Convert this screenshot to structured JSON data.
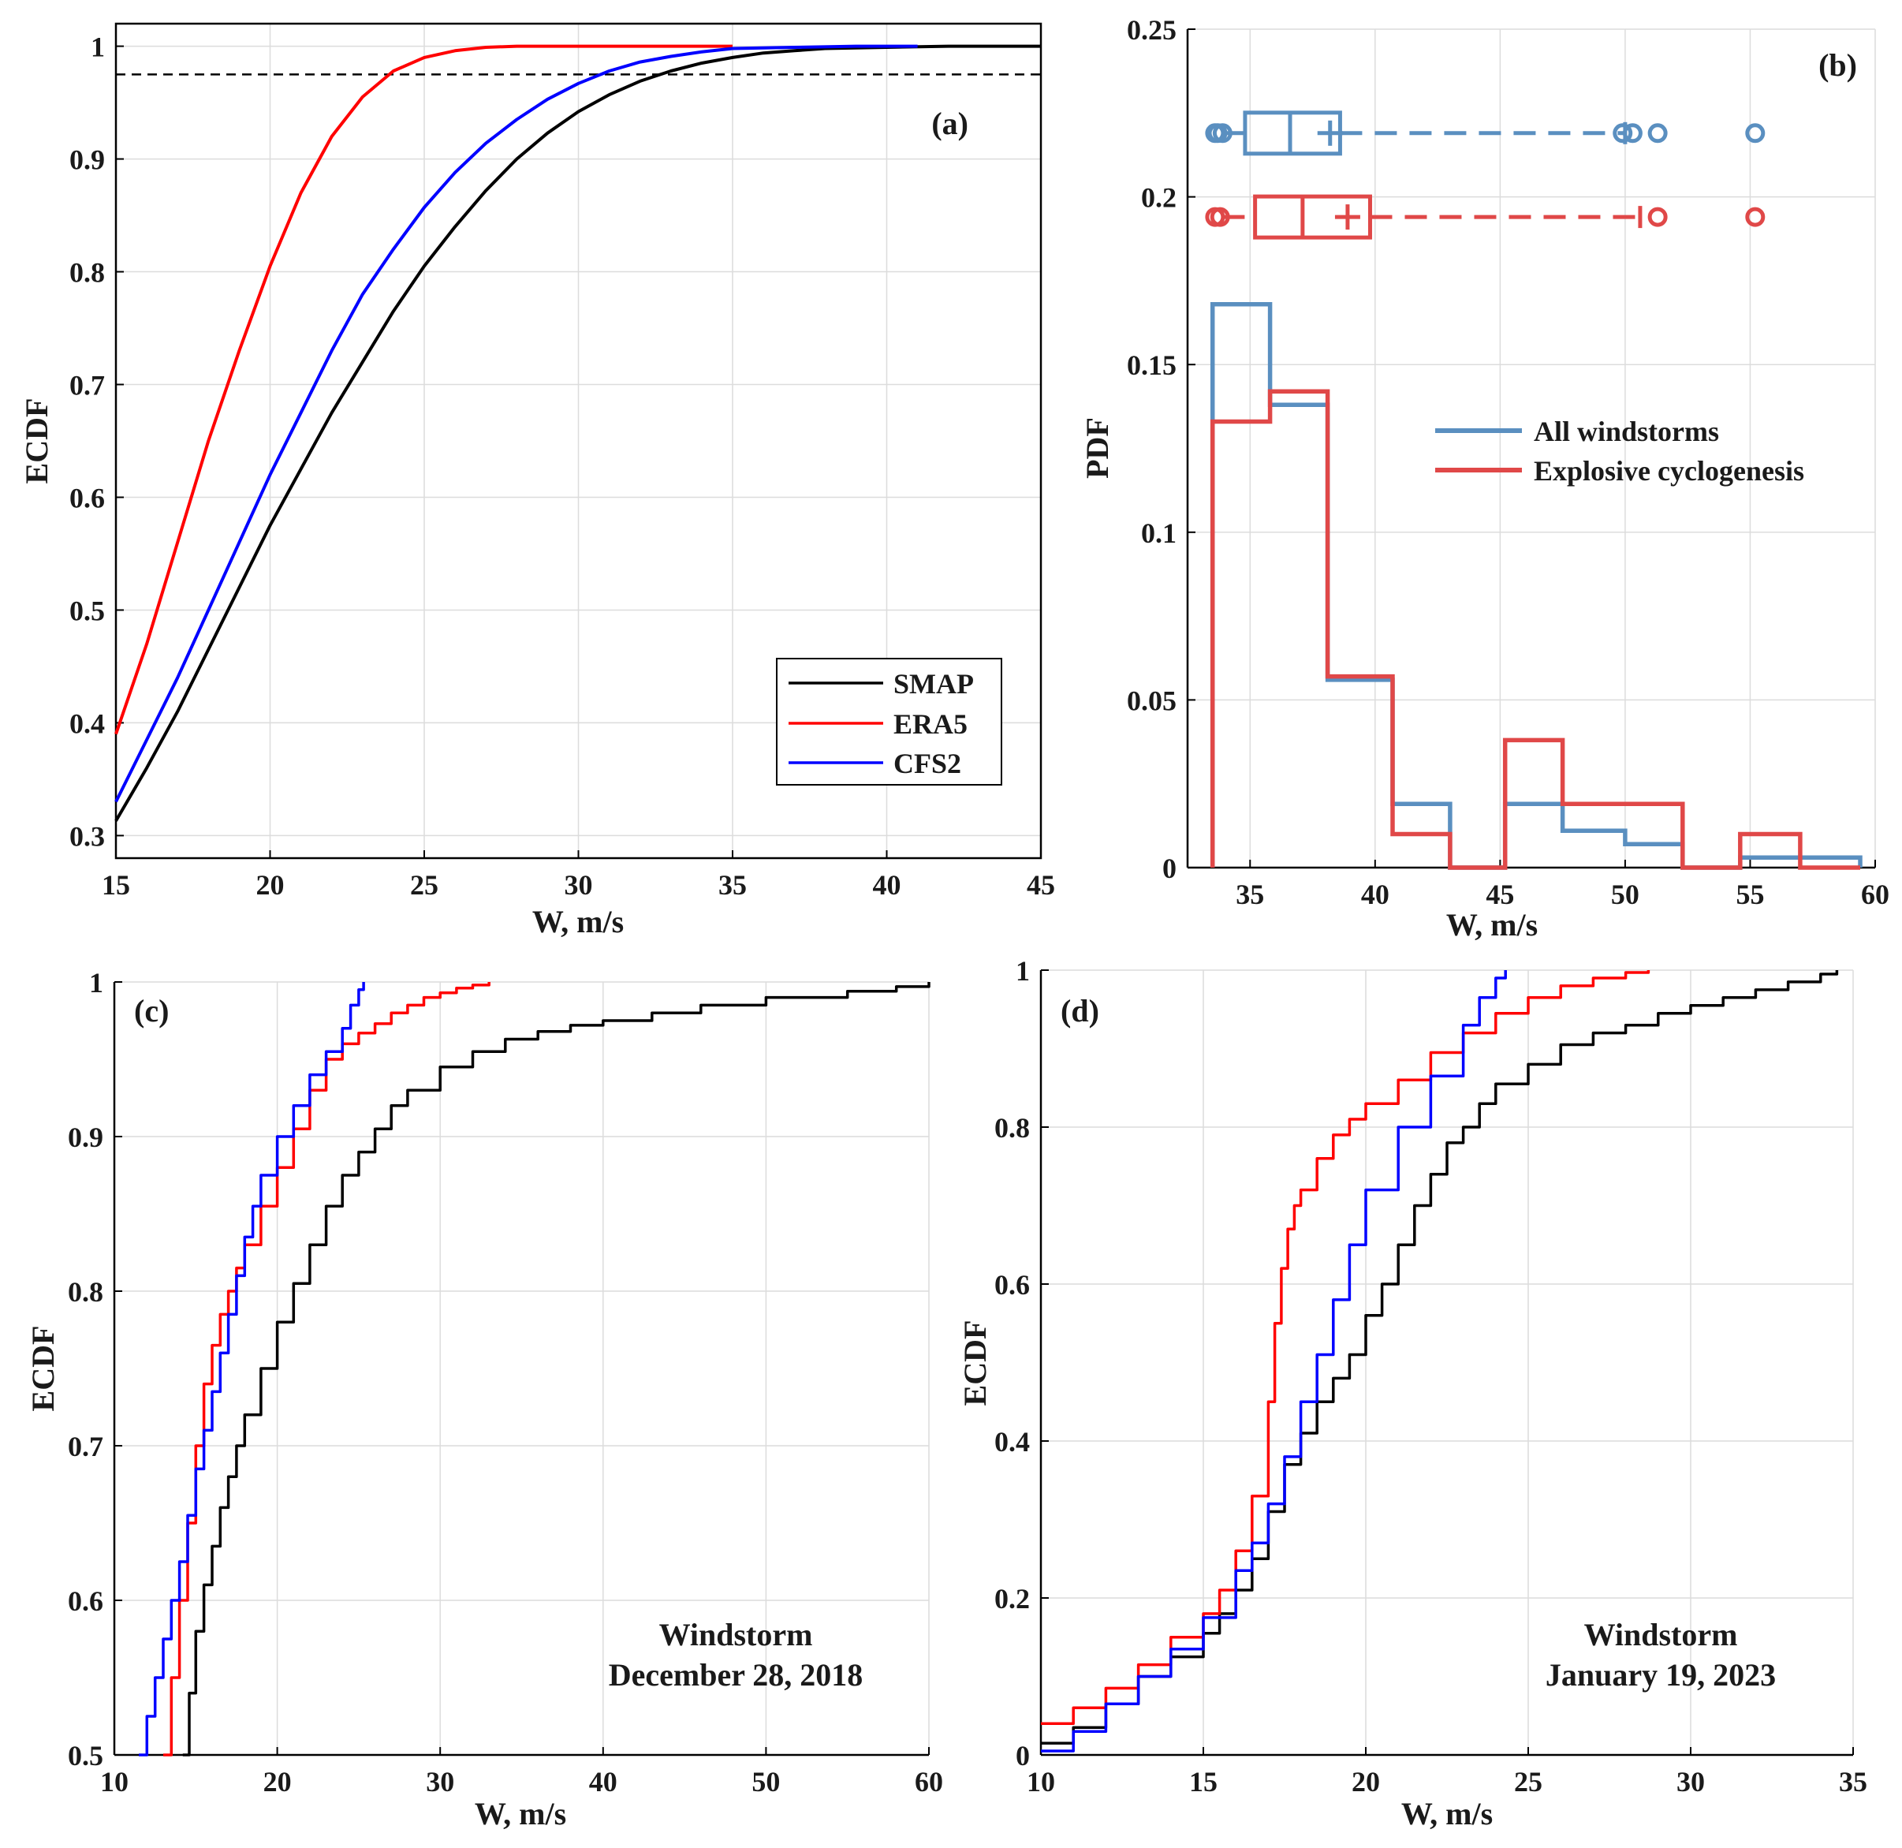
{
  "colors": {
    "smap": "#000000",
    "era5": "#ff0000",
    "cfs2": "#0000ff",
    "all_windstorms": "#5a8fc0",
    "explosive": "#e04848"
  },
  "chart_data": [
    {
      "panel": "(a)",
      "type": "line",
      "xlabel": "W, m/s",
      "ylabel": "ECDF",
      "xlim": [
        15,
        45
      ],
      "ylim": [
        0.28,
        1.02
      ],
      "xticks": [
        "15",
        "20",
        "25",
        "30",
        "35",
        "40",
        "45"
      ],
      "yticks": [
        "0.3",
        "0.4",
        "0.5",
        "0.6",
        "0.7",
        "0.8",
        "0.9",
        "1"
      ],
      "grid": true,
      "reference_line": {
        "y": 0.975,
        "style": "dashed",
        "color": "#000000"
      },
      "legend": {
        "placement": "lower-right",
        "entries": [
          "SMAP",
          "ERA5",
          "CFS2"
        ]
      },
      "series": [
        {
          "name": "SMAP",
          "color": "#000000",
          "x": [
            15,
            16,
            17,
            18,
            19,
            20,
            21,
            22,
            23,
            24,
            25,
            26,
            27,
            28,
            29,
            30,
            31,
            32,
            33,
            34,
            35,
            36,
            37,
            38,
            40,
            42,
            45
          ],
          "y": [
            0.313,
            0.36,
            0.41,
            0.465,
            0.52,
            0.575,
            0.625,
            0.675,
            0.72,
            0.765,
            0.805,
            0.84,
            0.872,
            0.9,
            0.923,
            0.942,
            0.957,
            0.969,
            0.978,
            0.985,
            0.99,
            0.994,
            0.996,
            0.998,
            0.999,
            1.0,
            1.0
          ]
        },
        {
          "name": "ERA5",
          "color": "#ff0000",
          "x": [
            15,
            16,
            17,
            18,
            19,
            20,
            21,
            22,
            23,
            24,
            25,
            26,
            27,
            28,
            30,
            33,
            35
          ],
          "y": [
            0.39,
            0.47,
            0.56,
            0.65,
            0.73,
            0.805,
            0.87,
            0.92,
            0.955,
            0.978,
            0.99,
            0.996,
            0.999,
            1.0,
            1.0,
            1.0,
            1.0
          ]
        },
        {
          "name": "CFS2",
          "color": "#0000ff",
          "x": [
            15,
            16,
            17,
            18,
            19,
            20,
            21,
            22,
            23,
            24,
            25,
            26,
            27,
            28,
            29,
            30,
            31,
            32,
            33,
            34,
            35,
            37,
            39,
            41
          ],
          "y": [
            0.33,
            0.385,
            0.44,
            0.5,
            0.56,
            0.62,
            0.675,
            0.73,
            0.78,
            0.82,
            0.857,
            0.888,
            0.914,
            0.935,
            0.953,
            0.967,
            0.978,
            0.986,
            0.991,
            0.995,
            0.998,
            0.999,
            1.0,
            1.0
          ]
        }
      ]
    },
    {
      "panel": "(b)",
      "type": "bar",
      "xlabel": "W, m/s",
      "ylabel": "PDF",
      "xlim": [
        32.5,
        60
      ],
      "ylim": [
        0,
        0.25
      ],
      "xticks": [
        "35",
        "40",
        "45",
        "50",
        "55",
        "60"
      ],
      "yticks": [
        "0",
        "0.05",
        "0.1",
        "0.15",
        "0.2",
        "0.25"
      ],
      "grid": true,
      "legend": {
        "placement": "right",
        "entries": [
          "All windstorms",
          "Explosive cyclogenesis"
        ]
      },
      "bin_edges": [
        33.5,
        35.8,
        38.1,
        40.7,
        43.0,
        45.2,
        47.5,
        50.0,
        52.3,
        54.6,
        57.0,
        59.4
      ],
      "series": [
        {
          "name": "All windstorms",
          "color": "#5a8fc0",
          "values": [
            0.168,
            0.138,
            0.056,
            0.019,
            0.0,
            0.019,
            0.011,
            0.007,
            0.0,
            0.003,
            0.003
          ],
          "boxplot": {
            "y": 0.219,
            "whisker_low": 33.9,
            "q1": 34.8,
            "median": 36.6,
            "mean": 38.2,
            "q3": 38.6,
            "whisker_high": 50.0,
            "outliers": [
              33.6,
              33.7,
              33.9,
              49.9,
              50.3,
              51.3,
              55.2
            ]
          }
        },
        {
          "name": "Explosive cyclogenesis",
          "color": "#e04848",
          "values": [
            0.133,
            0.142,
            0.057,
            0.01,
            0.0,
            0.038,
            0.019,
            0.019,
            0.0,
            0.01,
            0.0
          ],
          "boxplot": {
            "y": 0.194,
            "whisker_low": 33.9,
            "q1": 35.2,
            "median": 37.1,
            "mean": 38.9,
            "q3": 39.8,
            "whisker_high": 50.6,
            "outliers": [
              33.6,
              33.8,
              51.3,
              55.2
            ]
          }
        }
      ]
    },
    {
      "panel": "(c)",
      "type": "line",
      "xlabel": "W, m/s",
      "ylabel": "ECDF",
      "xlim": [
        10,
        60
      ],
      "ylim": [
        0.5,
        1.0
      ],
      "xticks": [
        "10",
        "20",
        "30",
        "40",
        "50",
        "60"
      ],
      "yticks": [
        "0.5",
        "0.6",
        "0.7",
        "0.8",
        "0.9",
        "1"
      ],
      "grid": true,
      "annotation": [
        "Windstorm",
        "December 28, 2018"
      ],
      "series": [
        {
          "name": "SMAP",
          "color": "#000000",
          "x": [
            14.2,
            14.6,
            15.0,
            15.5,
            16.0,
            16.5,
            17.0,
            17.5,
            18.0,
            19.0,
            20.0,
            21.0,
            22.0,
            23.0,
            24.0,
            25.0,
            26.0,
            27.0,
            28.0,
            30.0,
            32.0,
            34.0,
            36.0,
            38.0,
            40.0,
            43.0,
            46.0,
            50.0,
            55.0,
            58.0,
            60.0
          ],
          "y": [
            0.5,
            0.54,
            0.58,
            0.61,
            0.635,
            0.66,
            0.68,
            0.7,
            0.72,
            0.75,
            0.78,
            0.805,
            0.83,
            0.855,
            0.875,
            0.89,
            0.905,
            0.92,
            0.93,
            0.945,
            0.955,
            0.963,
            0.968,
            0.972,
            0.975,
            0.98,
            0.985,
            0.99,
            0.994,
            0.997,
            1.0
          ]
        },
        {
          "name": "ERA5",
          "color": "#ff0000",
          "x": [
            13.0,
            13.5,
            14.0,
            14.5,
            15.0,
            15.5,
            16.0,
            16.5,
            17.0,
            17.5,
            18.0,
            19.0,
            20.0,
            21.0,
            22.0,
            23.0,
            24.0,
            25.0,
            26.0,
            27.0,
            28.0,
            29.0,
            30.0,
            31.0,
            32.0,
            33.0
          ],
          "y": [
            0.5,
            0.55,
            0.6,
            0.65,
            0.7,
            0.74,
            0.765,
            0.785,
            0.8,
            0.815,
            0.83,
            0.855,
            0.88,
            0.905,
            0.93,
            0.95,
            0.96,
            0.967,
            0.973,
            0.98,
            0.985,
            0.99,
            0.993,
            0.996,
            0.998,
            1.0
          ]
        },
        {
          "name": "CFS2",
          "color": "#0000ff",
          "x": [
            11.5,
            12.0,
            12.5,
            13.0,
            13.5,
            14.0,
            14.5,
            15.0,
            15.5,
            16.0,
            16.5,
            17.0,
            17.5,
            18.0,
            18.5,
            19.0,
            20.0,
            21.0,
            22.0,
            23.0,
            24.0,
            24.5,
            25.0,
            25.3
          ],
          "y": [
            0.5,
            0.525,
            0.55,
            0.575,
            0.6,
            0.625,
            0.655,
            0.685,
            0.71,
            0.735,
            0.76,
            0.785,
            0.81,
            0.835,
            0.855,
            0.875,
            0.9,
            0.92,
            0.94,
            0.955,
            0.97,
            0.985,
            0.995,
            1.0
          ]
        }
      ]
    },
    {
      "panel": "(d)",
      "type": "line",
      "xlabel": "W, m/s",
      "ylabel": "ECDF",
      "xlim": [
        10,
        35
      ],
      "ylim": [
        0,
        1
      ],
      "xticks": [
        "10",
        "15",
        "20",
        "25",
        "30",
        "35"
      ],
      "yticks": [
        "0",
        "0.2",
        "0.4",
        "0.6",
        "0.8",
        "1"
      ],
      "grid": true,
      "annotation": [
        "Windstorm",
        "January 19, 2023"
      ],
      "series": [
        {
          "name": "SMAP",
          "color": "#000000",
          "x": [
            10.0,
            11.0,
            12.0,
            13.0,
            14.0,
            15.0,
            15.5,
            16.0,
            16.5,
            17.0,
            17.5,
            18.0,
            18.5,
            19.0,
            19.5,
            20.0,
            20.5,
            21.0,
            21.5,
            22.0,
            22.5,
            23.0,
            23.5,
            24.0,
            25.0,
            26.0,
            27.0,
            28.0,
            29.0,
            30.0,
            31.0,
            32.0,
            33.0,
            34.0,
            34.5
          ],
          "y": [
            0.015,
            0.035,
            0.065,
            0.1,
            0.125,
            0.155,
            0.18,
            0.21,
            0.25,
            0.31,
            0.37,
            0.41,
            0.45,
            0.48,
            0.51,
            0.56,
            0.6,
            0.65,
            0.7,
            0.74,
            0.78,
            0.8,
            0.83,
            0.855,
            0.88,
            0.905,
            0.92,
            0.93,
            0.945,
            0.955,
            0.965,
            0.975,
            0.985,
            0.995,
            1.0
          ]
        },
        {
          "name": "ERA5",
          "color": "#ff0000",
          "x": [
            10.0,
            11.0,
            12.0,
            13.0,
            14.0,
            15.0,
            15.5,
            16.0,
            16.5,
            17.0,
            17.2,
            17.4,
            17.6,
            17.8,
            18.0,
            18.5,
            19.0,
            19.5,
            20.0,
            21.0,
            22.0,
            23.0,
            24.0,
            25.0,
            26.0,
            27.0,
            28.0,
            28.7
          ],
          "y": [
            0.04,
            0.06,
            0.085,
            0.115,
            0.15,
            0.18,
            0.21,
            0.26,
            0.33,
            0.45,
            0.55,
            0.62,
            0.67,
            0.7,
            0.72,
            0.76,
            0.79,
            0.81,
            0.83,
            0.86,
            0.895,
            0.92,
            0.945,
            0.965,
            0.98,
            0.99,
            0.997,
            1.0
          ]
        },
        {
          "name": "CFS2",
          "color": "#0000ff",
          "x": [
            10.0,
            11.0,
            12.0,
            13.0,
            14.0,
            15.0,
            16.0,
            16.5,
            17.0,
            17.5,
            18.0,
            18.5,
            19.0,
            19.5,
            20.0,
            21.0,
            22.0,
            23.0,
            23.5,
            24.0,
            24.3
          ],
          "y": [
            0.005,
            0.03,
            0.065,
            0.1,
            0.135,
            0.175,
            0.235,
            0.27,
            0.32,
            0.38,
            0.45,
            0.51,
            0.58,
            0.65,
            0.72,
            0.8,
            0.865,
            0.93,
            0.965,
            0.99,
            1.0
          ]
        }
      ]
    }
  ]
}
